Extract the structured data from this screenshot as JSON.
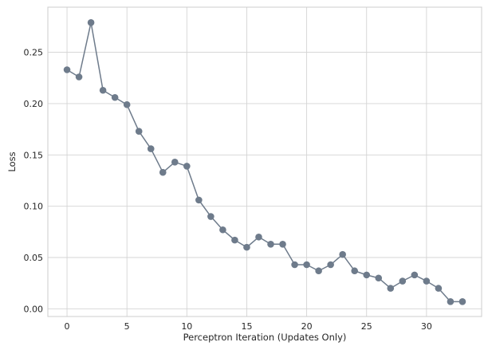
{
  "chart_data": {
    "type": "line",
    "xlabel": "Perceptron Iteration (Updates Only)",
    "ylabel": "Loss",
    "xlim": [
      -1.6,
      34.6
    ],
    "ylim": [
      -0.0075,
      0.294
    ],
    "xticks": [
      0,
      5,
      10,
      15,
      20,
      25,
      30
    ],
    "yticks": [
      0.0,
      0.05,
      0.1,
      0.15,
      0.2,
      0.25
    ],
    "xtick_labels": [
      "0",
      "5",
      "10",
      "15",
      "20",
      "25",
      "30"
    ],
    "ytick_labels": [
      "0.00",
      "0.05",
      "0.10",
      "0.15",
      "0.20",
      "0.25"
    ],
    "grid": true,
    "series": [
      {
        "color": "#6e7b8b",
        "marker": "circle",
        "x": [
          0,
          1,
          2,
          3,
          4,
          5,
          6,
          7,
          8,
          9,
          10,
          11,
          12,
          13,
          14,
          15,
          16,
          17,
          18,
          19,
          20,
          21,
          22,
          23,
          24,
          25,
          26,
          27,
          28,
          29,
          30,
          31,
          32,
          33
        ],
        "y": [
          0.233,
          0.226,
          0.279,
          0.213,
          0.206,
          0.199,
          0.173,
          0.156,
          0.133,
          0.143,
          0.139,
          0.106,
          0.09,
          0.077,
          0.067,
          0.06,
          0.07,
          0.063,
          0.063,
          0.043,
          0.043,
          0.037,
          0.043,
          0.053,
          0.037,
          0.033,
          0.03,
          0.02,
          0.027,
          0.033,
          0.027,
          0.02,
          0.007,
          0.007
        ]
      }
    ]
  }
}
